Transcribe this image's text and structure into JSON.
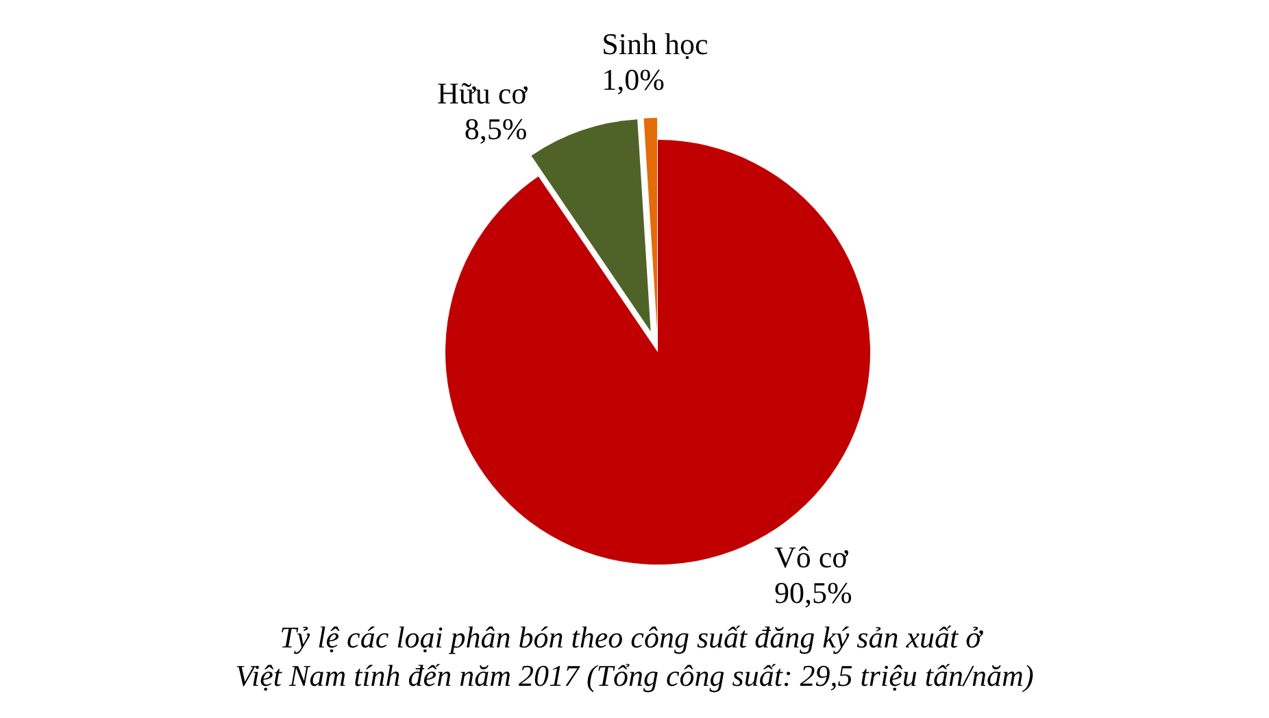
{
  "chart_data": {
    "type": "pie",
    "title": "Tỷ lệ các loại phân bón theo công suất đăng ký sản xuất ở Việt Nam tính đến năm 2017 (Tổng công suất: 29,5 triệu tấn/năm)",
    "categories": [
      "Vô cơ",
      "Hữu cơ",
      "Sinh học"
    ],
    "values": [
      90.5,
      8.5,
      1.0
    ],
    "value_labels": [
      "90,5%",
      "8,5%",
      "1,0%"
    ],
    "colors": [
      "#c00000",
      "#4f6228",
      "#e36c09"
    ],
    "legend": false
  }
}
